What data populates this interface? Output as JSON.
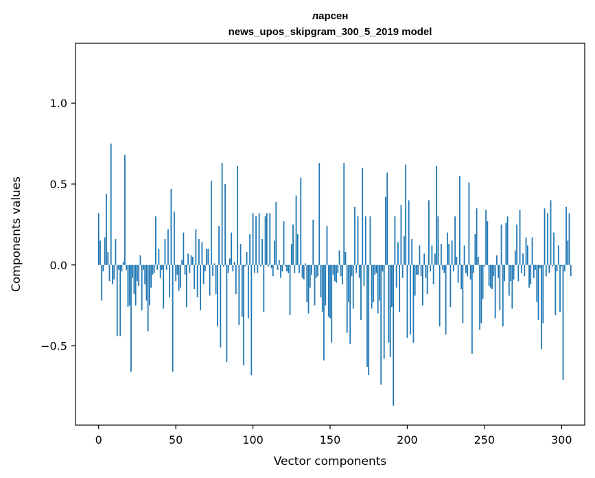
{
  "chart_data": {
    "type": "bar",
    "title_line1": "ларсен",
    "title_line2": "news_upos_skipgram_300_5_2019 model",
    "xlabel": "Vector components",
    "ylabel": "Components values",
    "xlim": [
      -15,
      315
    ],
    "ylim": [
      -0.99,
      1.37
    ],
    "xticks": [
      0,
      50,
      100,
      150,
      200,
      250,
      300
    ],
    "xtick_labels": [
      "0",
      "50",
      "100",
      "150",
      "200",
      "250",
      "300"
    ],
    "yticks": [
      -0.5,
      0.0,
      0.5,
      1.0
    ],
    "ytick_labels": [
      "−0.5",
      "0.0",
      "0.5",
      "1.0"
    ],
    "bar_color": "#1f77b4",
    "grid": false,
    "values": [
      0.32,
      0.15,
      -0.22,
      -0.04,
      0.17,
      0.44,
      0.08,
      -0.1,
      0.75,
      -0.12,
      -0.09,
      0.16,
      -0.44,
      -0.03,
      -0.44,
      -0.04,
      0.02,
      0.68,
      -0.03,
      -0.26,
      -0.25,
      -0.66,
      -0.08,
      -0.18,
      -0.25,
      -0.1,
      -0.13,
      0.06,
      -0.28,
      -0.03,
      -0.12,
      -0.22,
      -0.41,
      -0.25,
      -0.14,
      -0.06,
      -0.05,
      0.3,
      -0.03,
      0.1,
      -0.08,
      -0.03,
      -0.27,
      0.16,
      -0.03,
      0.22,
      -0.2,
      0.47,
      -0.66,
      0.33,
      -0.1,
      -0.06,
      -0.16,
      -0.14,
      0.03,
      0.2,
      -0.06,
      -0.26,
      0.07,
      -0.05,
      0.06,
      0.05,
      -0.15,
      0.22,
      -0.2,
      0.16,
      -0.28,
      0.14,
      -0.12,
      -0.04,
      0.1,
      0.1,
      -0.19,
      0.52,
      -0.07,
      0.01,
      -0.18,
      -0.38,
      0.24,
      -0.51,
      0.63,
      -0.01,
      0.5,
      -0.6,
      -0.05,
      0.04,
      0.2,
      -0.04,
      0.02,
      -0.18,
      0.61,
      -0.37,
      0.13,
      -0.32,
      -0.62,
      -0.01,
      0.08,
      -0.33,
      0.19,
      -0.68,
      0.32,
      -0.05,
      0.3,
      -0.05,
      0.32,
      -0.01,
      0.16,
      -0.29,
      0.3,
      0.32,
      -0.01,
      0.32,
      -0.02,
      -0.07,
      0.15,
      0.39,
      -0.03,
      0.03,
      -0.08,
      -0.04,
      0.27,
      -0.01,
      -0.04,
      -0.05,
      -0.31,
      0.13,
      0.25,
      -0.05,
      0.43,
      0.19,
      -0.05,
      0.54,
      -0.08,
      -0.09,
      0.01,
      -0.23,
      -0.3,
      -0.14,
      -0.06,
      0.28,
      -0.25,
      -0.08,
      -0.07,
      0.63,
      -0.2,
      -0.29,
      -0.59,
      -0.25,
      0.24,
      -0.32,
      -0.33,
      -0.48,
      -0.06,
      -0.1,
      -0.11,
      -0.05,
      0.09,
      -0.07,
      -0.12,
      0.63,
      0.08,
      -0.42,
      -0.23,
      -0.49,
      -0.07,
      -0.27,
      0.36,
      -0.05,
      0.3,
      -0.08,
      -0.34,
      0.6,
      -0.13,
      0.3,
      -0.63,
      -0.68,
      0.3,
      -0.27,
      -0.23,
      -0.06,
      -0.05,
      -0.3,
      -0.22,
      -0.74,
      -0.04,
      -0.58,
      0.42,
      0.57,
      -0.48,
      -0.57,
      -0.26,
      -0.87,
      0.3,
      -0.14,
      0.14,
      -0.29,
      0.37,
      -0.08,
      0.18,
      0.62,
      -0.45,
      0.4,
      -0.43,
      0.16,
      -0.48,
      -0.19,
      -0.06,
      -0.06,
      0.12,
      -0.07,
      -0.25,
      0.07,
      -0.08,
      -0.18,
      0.4,
      -0.04,
      0.12,
      -0.12,
      0.07,
      0.61,
      0.3,
      -0.38,
      0.13,
      -0.03,
      -0.05,
      -0.43,
      0.2,
      0.13,
      -0.26,
      0.15,
      -0.04,
      0.3,
      0.05,
      -0.11,
      0.55,
      -0.15,
      -0.36,
      0.12,
      -0.05,
      -0.07,
      0.51,
      -0.09,
      -0.55,
      -0.05,
      0.19,
      0.35,
      0.05,
      -0.4,
      -0.36,
      -0.21,
      -0.01,
      0.34,
      0.27,
      -0.13,
      -0.14,
      -0.15,
      -0.07,
      -0.33,
      0.06,
      -0.08,
      -0.28,
      0.25,
      -0.38,
      -0.1,
      0.26,
      0.3,
      -0.19,
      -0.1,
      -0.27,
      -0.09,
      0.09,
      0.25,
      -0.1,
      0.34,
      -0.05,
      0.07,
      -0.07,
      0.17,
      0.12,
      -0.14,
      -0.12,
      0.17,
      -0.08,
      -0.03,
      -0.23,
      -0.34,
      -0.02,
      -0.52,
      -0.36,
      0.35,
      -0.07,
      0.32,
      -0.05,
      0.4,
      -0.01,
      0.2,
      -0.31,
      -0.04,
      0.12,
      -0.29,
      -0.01,
      -0.71,
      -0.04,
      0.36,
      0.15,
      0.32,
      -0.07
    ]
  }
}
